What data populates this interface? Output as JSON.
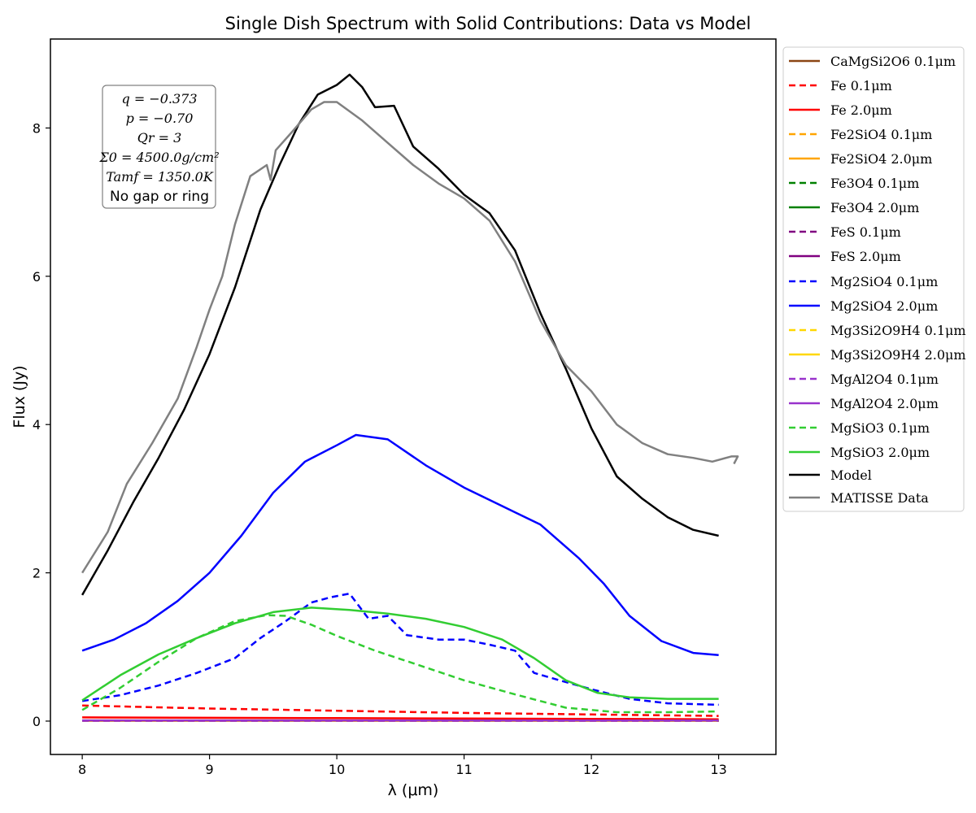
{
  "chart_data": {
    "type": "line",
    "title": "Single Dish Spectrum with Solid Contributions: Data vs Model",
    "xlabel": "λ (μm)",
    "ylabel": "Flux (Jy)",
    "xlim": [
      7.75,
      13.45
    ],
    "ylim": [
      -0.45,
      9.2
    ],
    "xticks": [
      8,
      9,
      10,
      11,
      12,
      13
    ],
    "yticks": [
      0,
      2,
      4,
      6,
      8
    ],
    "grid": false,
    "legend_placement": "outside-right",
    "annotation": {
      "lines": [
        "q = −0.373",
        "p = −0.70",
        "Qr = 3",
        "Σ0 = 4500.0g/cm²",
        "Tamf = 1350.0K",
        "No gap or ring"
      ]
    },
    "series": [
      {
        "name": "CaMgSi2O6 0.1μm",
        "color": "#8B4513",
        "dash": "solid",
        "x": [
          8.0,
          13.0
        ],
        "y": [
          0.01,
          0.01
        ]
      },
      {
        "name": "Fe 0.1μm",
        "color": "#ff0000",
        "dash": "dashed",
        "x": [
          8.0,
          9.0,
          10.0,
          11.0,
          12.0,
          13.0
        ],
        "y": [
          0.21,
          0.17,
          0.14,
          0.11,
          0.09,
          0.07
        ]
      },
      {
        "name": "Fe 2.0μm",
        "color": "#ff0000",
        "dash": "solid",
        "x": [
          8.0,
          9.0,
          10.0,
          11.0,
          12.0,
          13.0
        ],
        "y": [
          0.05,
          0.045,
          0.04,
          0.035,
          0.03,
          0.025
        ]
      },
      {
        "name": "Fe2SiO4 0.1μm",
        "color": "#ffa500",
        "dash": "dashed",
        "x": [
          8.0,
          13.0
        ],
        "y": [
          0.005,
          0.005
        ]
      },
      {
        "name": "Fe2SiO4 2.0μm",
        "color": "#ffa500",
        "dash": "solid",
        "x": [
          8.0,
          13.0
        ],
        "y": [
          0.005,
          0.005
        ]
      },
      {
        "name": "Fe3O4 0.1μm",
        "color": "#008000",
        "dash": "dashed",
        "x": [
          8.0,
          13.0
        ],
        "y": [
          0.003,
          0.003
        ]
      },
      {
        "name": "Fe3O4 2.0μm",
        "color": "#008000",
        "dash": "solid",
        "x": [
          8.0,
          13.0
        ],
        "y": [
          0.003,
          0.003
        ]
      },
      {
        "name": "FeS 0.1μm",
        "color": "#800080",
        "dash": "dashed",
        "x": [
          8.0,
          13.0
        ],
        "y": [
          0.004,
          0.004
        ]
      },
      {
        "name": "FeS 2.0μm",
        "color": "#800080",
        "dash": "solid",
        "x": [
          8.0,
          13.0
        ],
        "y": [
          0.006,
          0.006
        ]
      },
      {
        "name": "Mg2SiO4 0.1μm",
        "color": "#0000ff",
        "dash": "dashed",
        "x": [
          8.0,
          8.3,
          8.6,
          8.9,
          9.2,
          9.4,
          9.6,
          9.8,
          9.95,
          10.1,
          10.25,
          10.4,
          10.55,
          10.8,
          11.0,
          11.2,
          11.4,
          11.55,
          11.75,
          12.0,
          12.3,
          12.6,
          13.0
        ],
        "y": [
          0.27,
          0.35,
          0.48,
          0.65,
          0.85,
          1.12,
          1.35,
          1.6,
          1.67,
          1.72,
          1.38,
          1.42,
          1.16,
          1.1,
          1.1,
          1.03,
          0.95,
          0.65,
          0.55,
          0.43,
          0.3,
          0.24,
          0.22
        ]
      },
      {
        "name": "Mg2SiO4 2.0μm",
        "color": "#0000ff",
        "dash": "solid",
        "x": [
          8.0,
          8.25,
          8.5,
          8.75,
          9.0,
          9.25,
          9.5,
          9.75,
          10.0,
          10.15,
          10.4,
          10.7,
          11.0,
          11.3,
          11.6,
          11.9,
          12.1,
          12.3,
          12.55,
          12.8,
          13.0
        ],
        "y": [
          0.95,
          1.1,
          1.32,
          1.62,
          2.0,
          2.5,
          3.08,
          3.5,
          3.72,
          3.86,
          3.8,
          3.45,
          3.15,
          2.9,
          2.65,
          2.2,
          1.85,
          1.42,
          1.08,
          0.92,
          0.89
        ]
      },
      {
        "name": "Mg3Si2O9H4 0.1μm",
        "color": "#ffd700",
        "dash": "dashed",
        "x": [
          8.0,
          13.0
        ],
        "y": [
          0.003,
          0.003
        ]
      },
      {
        "name": "Mg3Si2O9H4 2.0μm",
        "color": "#ffd700",
        "dash": "solid",
        "x": [
          8.0,
          13.0
        ],
        "y": [
          0.003,
          0.003
        ]
      },
      {
        "name": "MgAl2O4 0.1μm",
        "color": "#9932cc",
        "dash": "dashed",
        "x": [
          8.0,
          13.0
        ],
        "y": [
          0.004,
          0.004
        ]
      },
      {
        "name": "MgAl2O4 2.0μm",
        "color": "#9932cc",
        "dash": "solid",
        "x": [
          8.0,
          13.0
        ],
        "y": [
          0.008,
          0.008
        ]
      },
      {
        "name": "MgSiO3 0.1μm",
        "color": "#32cd32",
        "dash": "dashed",
        "x": [
          8.0,
          8.3,
          8.6,
          8.9,
          9.2,
          9.45,
          9.6,
          9.8,
          10.0,
          10.3,
          10.6,
          11.0,
          11.4,
          11.8,
          12.2,
          12.6,
          13.0
        ],
        "y": [
          0.15,
          0.45,
          0.8,
          1.12,
          1.35,
          1.43,
          1.42,
          1.3,
          1.15,
          0.95,
          0.78,
          0.55,
          0.36,
          0.18,
          0.12,
          0.12,
          0.13
        ]
      },
      {
        "name": "MgSiO3 2.0μm",
        "color": "#32cd32",
        "dash": "solid",
        "x": [
          8.0,
          8.3,
          8.6,
          8.9,
          9.2,
          9.5,
          9.8,
          10.1,
          10.4,
          10.7,
          11.0,
          11.3,
          11.55,
          11.8,
          12.05,
          12.3,
          12.6,
          13.0
        ],
        "y": [
          0.28,
          0.62,
          0.9,
          1.12,
          1.32,
          1.47,
          1.53,
          1.5,
          1.45,
          1.38,
          1.27,
          1.1,
          0.85,
          0.55,
          0.38,
          0.32,
          0.3,
          0.3
        ]
      },
      {
        "name": "Model",
        "color": "#000000",
        "dash": "solid",
        "x": [
          8.0,
          8.2,
          8.4,
          8.6,
          8.8,
          9.0,
          9.2,
          9.4,
          9.55,
          9.7,
          9.85,
          10.0,
          10.1,
          10.2,
          10.3,
          10.45,
          10.6,
          10.8,
          11.0,
          11.2,
          11.4,
          11.6,
          11.8,
          12.0,
          12.2,
          12.4,
          12.6,
          12.8,
          13.0
        ],
        "y": [
          1.7,
          2.3,
          2.95,
          3.55,
          4.2,
          4.95,
          5.85,
          6.9,
          7.5,
          8.05,
          8.45,
          8.58,
          8.72,
          8.55,
          8.28,
          8.3,
          7.75,
          7.45,
          7.1,
          6.85,
          6.35,
          5.5,
          4.75,
          3.95,
          3.3,
          3.0,
          2.75,
          2.58,
          2.5
        ]
      },
      {
        "name": "MATISSE Data",
        "color": "#808080",
        "dash": "solid",
        "x": [
          8.0,
          8.2,
          8.35,
          8.55,
          8.75,
          8.9,
          9.0,
          9.1,
          9.2,
          9.32,
          9.45,
          9.48,
          9.52,
          9.65,
          9.8,
          9.9,
          10.0,
          10.2,
          10.4,
          10.6,
          10.8,
          11.0,
          11.2,
          11.4,
          11.6,
          11.8,
          12.0,
          12.2,
          12.4,
          12.6,
          12.8,
          12.95,
          13.1,
          13.15,
          13.12
        ],
        "y": [
          2.0,
          2.55,
          3.2,
          3.75,
          4.35,
          5.05,
          5.55,
          6.0,
          6.7,
          7.35,
          7.5,
          7.3,
          7.7,
          7.95,
          8.25,
          8.35,
          8.35,
          8.1,
          7.8,
          7.5,
          7.25,
          7.05,
          6.75,
          6.2,
          5.4,
          4.8,
          4.45,
          4.0,
          3.75,
          3.6,
          3.55,
          3.5,
          3.57,
          3.57,
          3.47
        ]
      }
    ]
  }
}
